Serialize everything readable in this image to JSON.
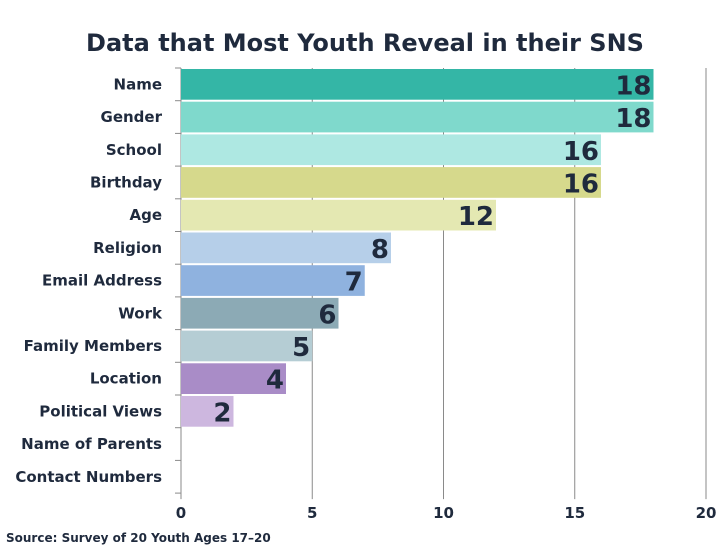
{
  "chart_data": {
    "type": "bar",
    "orientation": "horizontal",
    "title": "Data that Most Youth Reveal in their SNS",
    "categories": [
      "Name",
      "Gender",
      "School",
      "Birthday",
      "Age",
      "Religion",
      "Email Address",
      "Work",
      "Family Members",
      "Location",
      "Political Views",
      "Name of Parents",
      "Contact Numbers"
    ],
    "values": [
      18,
      18,
      16,
      16,
      12,
      8,
      7,
      6,
      5,
      4,
      2,
      0,
      0
    ],
    "value_labels": [
      "18",
      "18",
      "16",
      "16",
      "12",
      "8",
      "7",
      "6",
      "5",
      "4",
      "2",
      "",
      ""
    ],
    "colors": [
      "#34b6a6",
      "#7fd9cc",
      "#aee8e2",
      "#d6d98c",
      "#e4e8b2",
      "#b6cfe9",
      "#8fb2df",
      "#8caab5",
      "#b5cdd4",
      "#a98cc7",
      "#cdb7df",
      "#ffffff",
      "#ffffff"
    ],
    "xlim": [
      0,
      20
    ],
    "xticks": [
      0,
      5,
      10,
      15,
      20
    ],
    "xtick_labels": [
      "0",
      "5",
      "10",
      "15",
      "20"
    ],
    "grid": true,
    "legend": "none",
    "xlabel": "",
    "ylabel": ""
  },
  "source_note": "Source: Survey of 20 Youth Ages 17–20"
}
